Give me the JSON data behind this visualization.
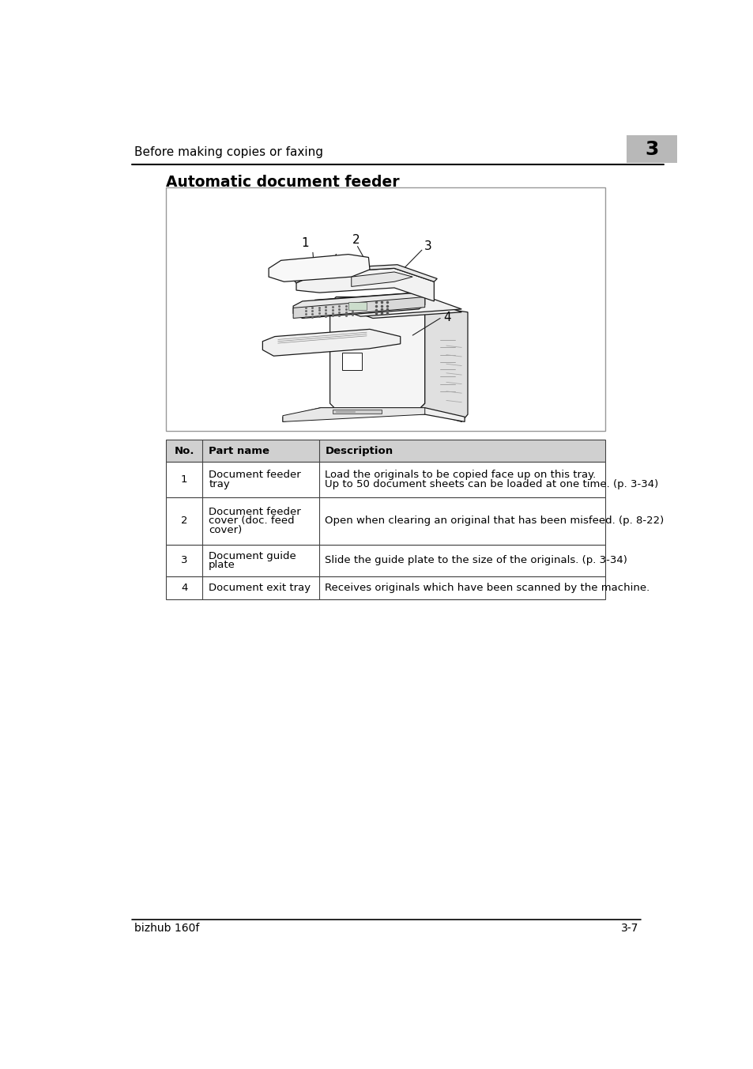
{
  "page_title": "Before making copies or faxing",
  "chapter_num": "3",
  "section_title": "Automatic document feeder",
  "footer_left": "bizhub 160f",
  "footer_right": "3-7",
  "table_headers": [
    "No.",
    "Part name",
    "Description"
  ],
  "table_rows": [
    {
      "no": "1",
      "part_name": "Document feeder\ntray",
      "description": "Load the originals to be copied face up on this tray.\nUp to 50 document sheets can be loaded at one time. (p. 3-34)"
    },
    {
      "no": "2",
      "part_name": "Document feeder\ncover (doc. feed\ncover)",
      "description": "Open when clearing an original that has been misfeed. (p. 8-22)"
    },
    {
      "no": "3",
      "part_name": "Document guide\nplate",
      "description": "Slide the guide plate to the size of the originals. (p. 3-34)"
    },
    {
      "no": "4",
      "part_name": "Document exit tray",
      "description": "Receives originals which have been scanned by the machine."
    }
  ],
  "header_bg": "#d0d0d0",
  "row_bg": "#ffffff",
  "border_color": "#444444",
  "image_border_color": "#aaaaaa",
  "title_color": "#000000",
  "text_color": "#000000",
  "header_text_color": "#000000",
  "page_bg": "#ffffff"
}
